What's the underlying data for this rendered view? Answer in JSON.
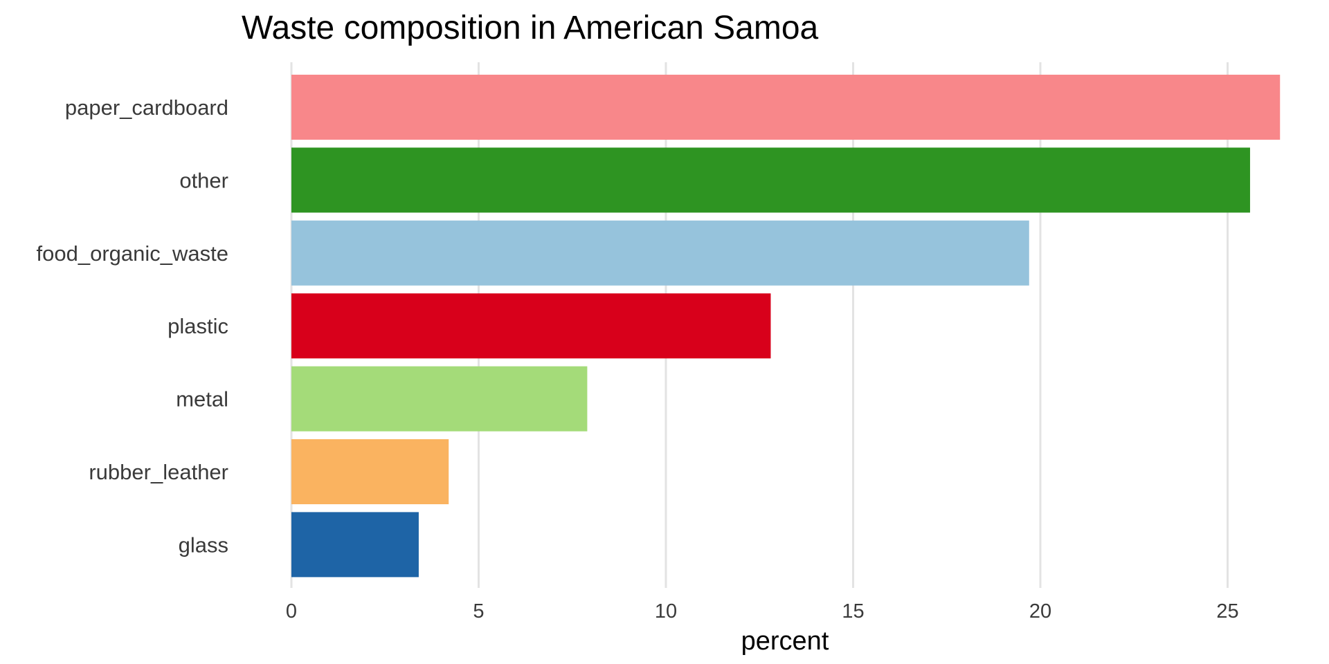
{
  "chart_data": {
    "type": "bar",
    "orientation": "horizontal",
    "title": "Waste composition in American Samoa",
    "xlabel": "percent",
    "ylabel": "",
    "xlim": [
      0,
      26.5
    ],
    "x_ticks": [
      0,
      5,
      10,
      15,
      20,
      25
    ],
    "grid": "vertical major lines",
    "legend": "none",
    "categories": [
      "paper_cardboard",
      "other",
      "food_organic_waste",
      "plastic",
      "metal",
      "rubber_leather",
      "glass"
    ],
    "values": [
      26.4,
      25.6,
      19.7,
      12.8,
      7.9,
      4.2,
      3.4
    ],
    "colors": [
      "#f8878a",
      "#2e9422",
      "#96c3dc",
      "#d8001b",
      "#a4db79",
      "#fab360",
      "#1e64a6"
    ]
  }
}
